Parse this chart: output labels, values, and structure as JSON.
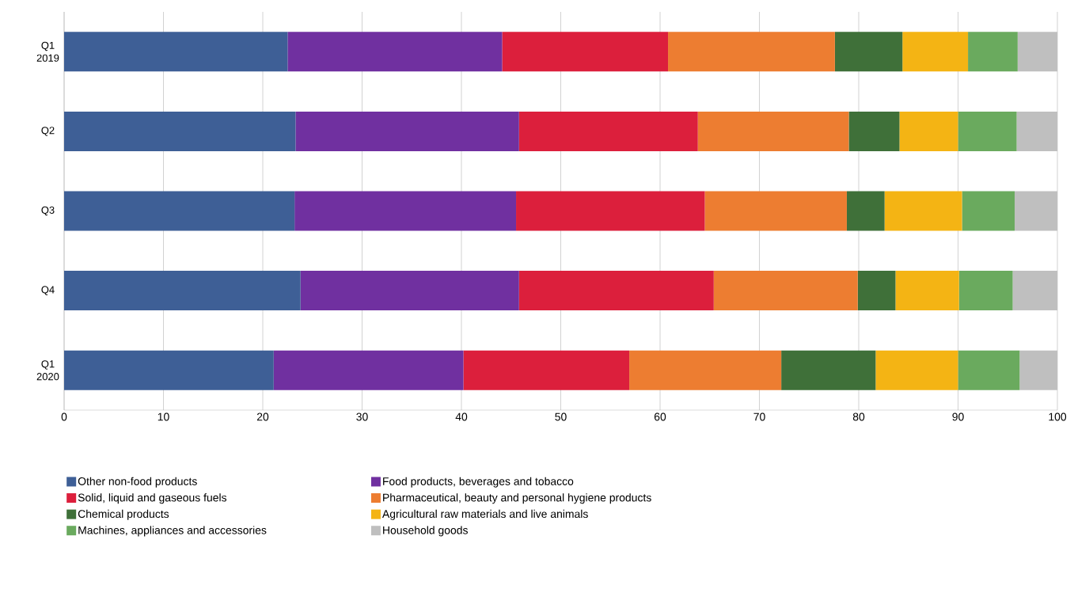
{
  "chart_data": {
    "type": "bar",
    "orientation": "horizontal",
    "stacked": true,
    "categories": [
      "Q1 2019",
      "Q2",
      "Q3",
      "Q4",
      "Q1 2020"
    ],
    "series": [
      {
        "name": "Other non-food products",
        "color": "#3e5f96",
        "values": [
          22.5,
          23.3,
          23.2,
          23.8,
          21.1
        ]
      },
      {
        "name": "Food products, beverages and tobacco",
        "color": "#7030a0",
        "values": [
          21.6,
          22.5,
          22.3,
          22.0,
          19.1
        ]
      },
      {
        "name": "Solid, liquid and gaseous fuels",
        "color": "#dc1f3c",
        "values": [
          16.7,
          18.0,
          19.0,
          19.6,
          16.7
        ]
      },
      {
        "name": "Pharmaceutical, beauty and personal hygiene products",
        "color": "#ed7d31",
        "values": [
          16.8,
          15.2,
          14.3,
          14.5,
          15.3
        ]
      },
      {
        "name": "Chemical products",
        "color": "#3f7039",
        "values": [
          6.8,
          5.1,
          3.8,
          3.8,
          9.5
        ]
      },
      {
        "name": "Agricultural raw materials and live animals",
        "color": "#f4b414",
        "values": [
          6.6,
          5.9,
          7.8,
          6.4,
          8.3
        ]
      },
      {
        "name": "Machines, appliances and accessories",
        "color": "#6aaa5e",
        "values": [
          5.0,
          5.9,
          5.3,
          5.4,
          6.2
        ]
      },
      {
        "name": "Household goods",
        "color": "#bfbfbf",
        "values": [
          4.0,
          4.1,
          4.3,
          4.5,
          3.8
        ]
      }
    ],
    "xlim": [
      0,
      100
    ],
    "xticks": [
      0,
      10,
      20,
      30,
      40,
      50,
      60,
      70,
      80,
      90,
      100
    ],
    "grid": "x",
    "legend": "bottom"
  }
}
